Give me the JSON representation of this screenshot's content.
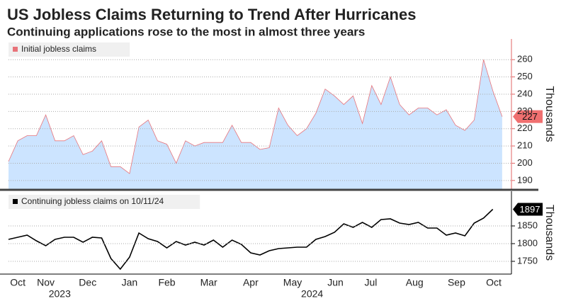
{
  "title": "US Jobless Claims Returning to Trend After Hurricanes",
  "subtitle": "Continuing applications rose to the most in almost three years",
  "chart_data": [
    {
      "type": "area",
      "ylabel": "Thousands",
      "axis_color": "#e06666",
      "xlim": [
        0,
        54
      ],
      "ylim": [
        185,
        272
      ],
      "yticks": [
        190,
        200,
        210,
        220,
        230,
        240,
        250,
        260
      ],
      "grid": true,
      "series": [
        {
          "name": "Initial jobless claims",
          "color": "#e8737a",
          "fill": "#cce4ff",
          "values": [
            201,
            213,
            216,
            216,
            228,
            213,
            213,
            216,
            205,
            207,
            213,
            198,
            198,
            194,
            221,
            225,
            213,
            211,
            200,
            213,
            210,
            212,
            212,
            212,
            222,
            212,
            212,
            208,
            209,
            232,
            222,
            216,
            220,
            229,
            243,
            239,
            234,
            239,
            223,
            245,
            234,
            250,
            234,
            228,
            232,
            232,
            228,
            231,
            222,
            219,
            225,
            260,
            242,
            227
          ]
        }
      ]
    },
    {
      "type": "line",
      "ylabel": "Thousands",
      "axis_color": "#000000",
      "xlim": [
        0,
        54
      ],
      "ylim": [
        1714,
        1948
      ],
      "yticks": [
        1750,
        1800,
        1850
      ],
      "grid": true,
      "xticks": [
        {
          "value": 1.0,
          "label": "Oct"
        },
        {
          "value": 4.0,
          "label": "Nov"
        },
        {
          "value": 8.5,
          "label": "Dec"
        },
        {
          "value": 13.0,
          "label": "Jan"
        },
        {
          "value": 17.0,
          "label": "Feb"
        },
        {
          "value": 21.5,
          "label": "Mar"
        },
        {
          "value": 26.0,
          "label": "Apr"
        },
        {
          "value": 30.5,
          "label": "May"
        },
        {
          "value": 35.1,
          "label": "Jun"
        },
        {
          "value": 38.9,
          "label": "Jul"
        },
        {
          "value": 43.6,
          "label": "Aug"
        },
        {
          "value": 48.1,
          "label": "Sep"
        },
        {
          "value": 52.1,
          "label": "Oct"
        }
      ],
      "year_labels": [
        {
          "value": 5.5,
          "label": "2023"
        },
        {
          "value": 32.6,
          "label": "2024"
        }
      ],
      "series": [
        {
          "name": "Continuing jobless claims on 10/11/24",
          "color": "#000000",
          "values": [
            1812,
            1818,
            1824,
            1808,
            1794,
            1812,
            1818,
            1818,
            1804,
            1818,
            1816,
            1758,
            1728,
            1762,
            1830,
            1814,
            1806,
            1788,
            1806,
            1796,
            1804,
            1796,
            1810,
            1790,
            1810,
            1798,
            1774,
            1768,
            1780,
            1786,
            1788,
            1790,
            1790,
            1812,
            1820,
            1832,
            1856,
            1846,
            1860,
            1846,
            1868,
            1870,
            1858,
            1854,
            1860,
            1844,
            1844,
            1824,
            1830,
            1822,
            1858,
            1872,
            1897,
            null
          ]
        }
      ]
    }
  ]
}
